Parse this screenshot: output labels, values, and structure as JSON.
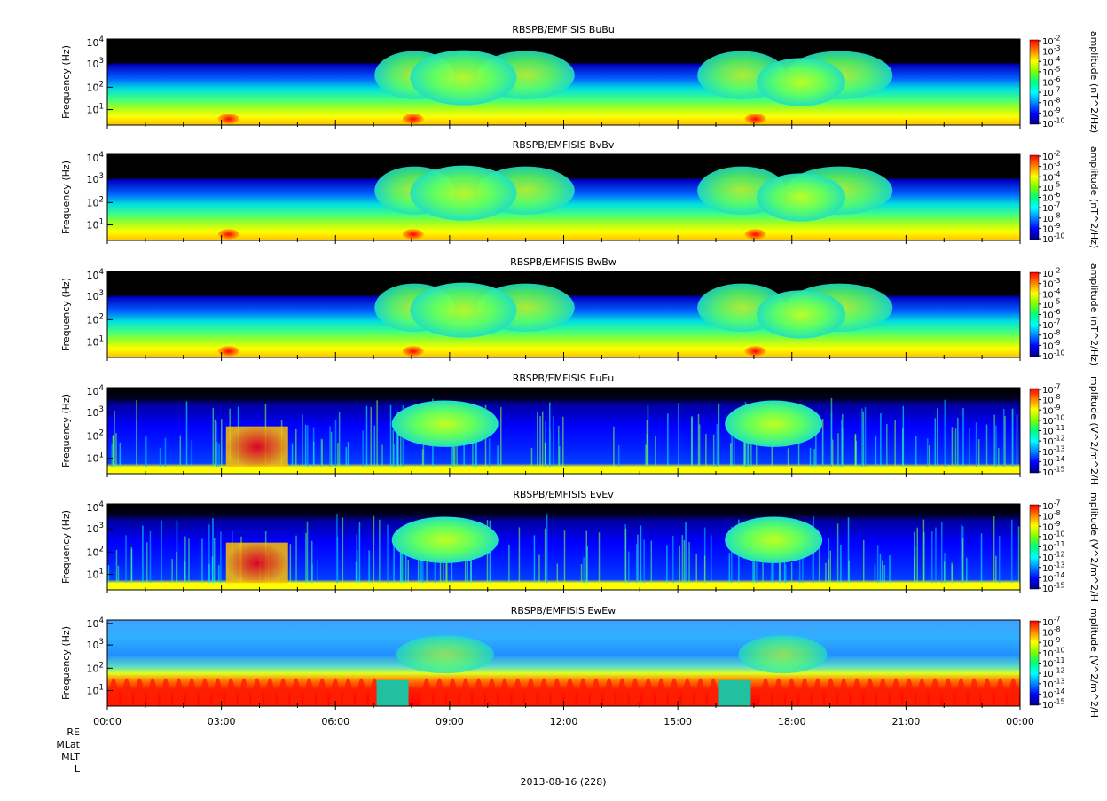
{
  "chart_data": [
    {
      "type": "heatmap",
      "title": "RBSPB/EMFISIS  BuBu",
      "ylabel": "Frequency (Hz)",
      "yscale": "log",
      "yticks": [
        "10^1",
        "10^2",
        "10^3",
        "10^4"
      ],
      "colorbar_label": "amplitude (nT^2/Hz)",
      "colorbar_ticks": [
        "10^-2",
        "10^-3",
        "10^-4",
        "10^-5",
        "10^-6",
        "10^-7",
        "10^-8",
        "10^-9",
        "10^-10"
      ],
      "variant": "B"
    },
    {
      "type": "heatmap",
      "title": "RBSPB/EMFISIS  BvBv",
      "ylabel": "Frequency (Hz)",
      "yscale": "log",
      "yticks": [
        "10^1",
        "10^2",
        "10^3",
        "10^4"
      ],
      "colorbar_label": "amplitude (nT^2/Hz)",
      "colorbar_ticks": [
        "10^-2",
        "10^-3",
        "10^-4",
        "10^-5",
        "10^-6",
        "10^-7",
        "10^-8",
        "10^-9",
        "10^-10"
      ],
      "variant": "B"
    },
    {
      "type": "heatmap",
      "title": "RBSPB/EMFISIS  BwBw",
      "ylabel": "Frequency (Hz)",
      "yscale": "log",
      "yticks": [
        "10^1",
        "10^2",
        "10^3",
        "10^4"
      ],
      "colorbar_label": "amplitude (nT^2/Hz)",
      "colorbar_ticks": [
        "10^-2",
        "10^-3",
        "10^-4",
        "10^-5",
        "10^-6",
        "10^-7",
        "10^-8",
        "10^-9",
        "10^-10"
      ],
      "variant": "B"
    },
    {
      "type": "heatmap",
      "title": "RBSPB/EMFISIS  EuEu",
      "ylabel": "Frequency (Hz)",
      "yscale": "log",
      "yticks": [
        "10^1",
        "10^2",
        "10^3",
        "10^4"
      ],
      "colorbar_label": "mplitude (V^2/m^2/H",
      "colorbar_ticks": [
        "10^-7",
        "10^-8",
        "10^-9",
        "10^-10",
        "10^-11",
        "10^-12",
        "10^-13",
        "10^-14",
        "10^-15"
      ],
      "variant": "E"
    },
    {
      "type": "heatmap",
      "title": "RBSPB/EMFISIS  EvEv",
      "ylabel": "Frequency (Hz)",
      "yscale": "log",
      "yticks": [
        "10^1",
        "10^2",
        "10^3",
        "10^4"
      ],
      "colorbar_label": "mplitude (V^2/m^2/H",
      "colorbar_ticks": [
        "10^-7",
        "10^-8",
        "10^-9",
        "10^-10",
        "10^-11",
        "10^-12",
        "10^-13",
        "10^-14",
        "10^-15"
      ],
      "variant": "E"
    },
    {
      "type": "heatmap",
      "title": "RBSPB/EMFISIS  EwEw",
      "ylabel": "Frequency (Hz)",
      "yscale": "log",
      "yticks": [
        "10^1",
        "10^2",
        "10^3",
        "10^4"
      ],
      "colorbar_label": "mplitude (V^2/m^2/H",
      "colorbar_ticks": [
        "10^-7",
        "10^-8",
        "10^-9",
        "10^-10",
        "10^-11",
        "10^-12",
        "10^-13",
        "10^-14",
        "10^-15"
      ],
      "variant": "Ew"
    }
  ],
  "xaxis": {
    "ticks": [
      "00:00",
      "03:00",
      "06:00",
      "09:00",
      "12:00",
      "15:00",
      "18:00",
      "21:00",
      "00:00"
    ],
    "ephemeris_labels": [
      "RE",
      "MLat",
      "MLT",
      "L"
    ],
    "date_label": "2013-08-16 (228)"
  },
  "colors": {
    "colormap": [
      "#000080",
      "#0000ff",
      "#0080ff",
      "#00ffff",
      "#00ff80",
      "#80ff00",
      "#ffff00",
      "#ff8000",
      "#ff0000"
    ],
    "background_black": "#000000"
  }
}
